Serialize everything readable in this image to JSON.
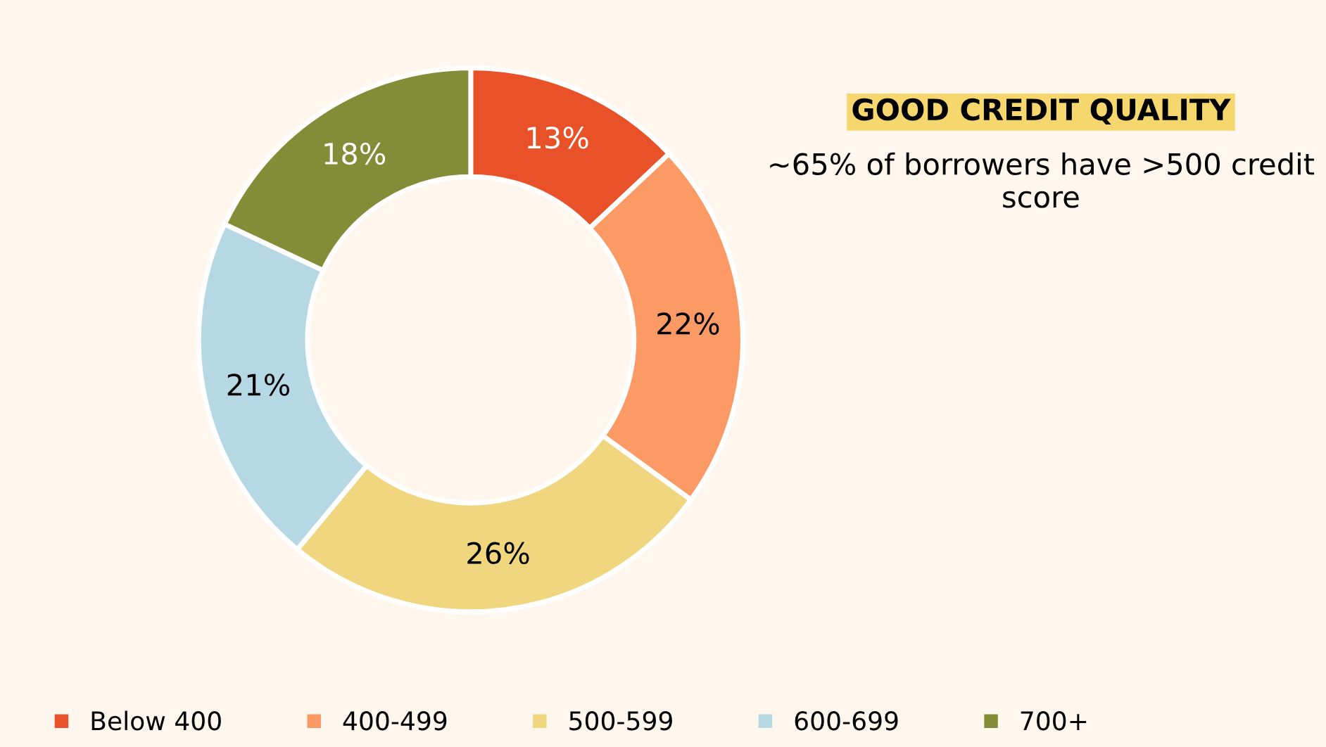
{
  "chart_data": {
    "type": "donut",
    "title": "GOOD CREDIT QUALITY",
    "subtitle": "~65% of borrowers have >500 credit score",
    "categories": [
      "Below 400",
      "400-499",
      "500-599",
      "600-699",
      "700+"
    ],
    "values": [
      13,
      22,
      26,
      21,
      18
    ],
    "colors": [
      "#e95228",
      "#fc9a66",
      "#f0d67e",
      "#b5d8e4",
      "#838c37"
    ],
    "value_labels": [
      "13%",
      "22%",
      "26%",
      "21%",
      "18%"
    ],
    "legend": "bottom"
  }
}
